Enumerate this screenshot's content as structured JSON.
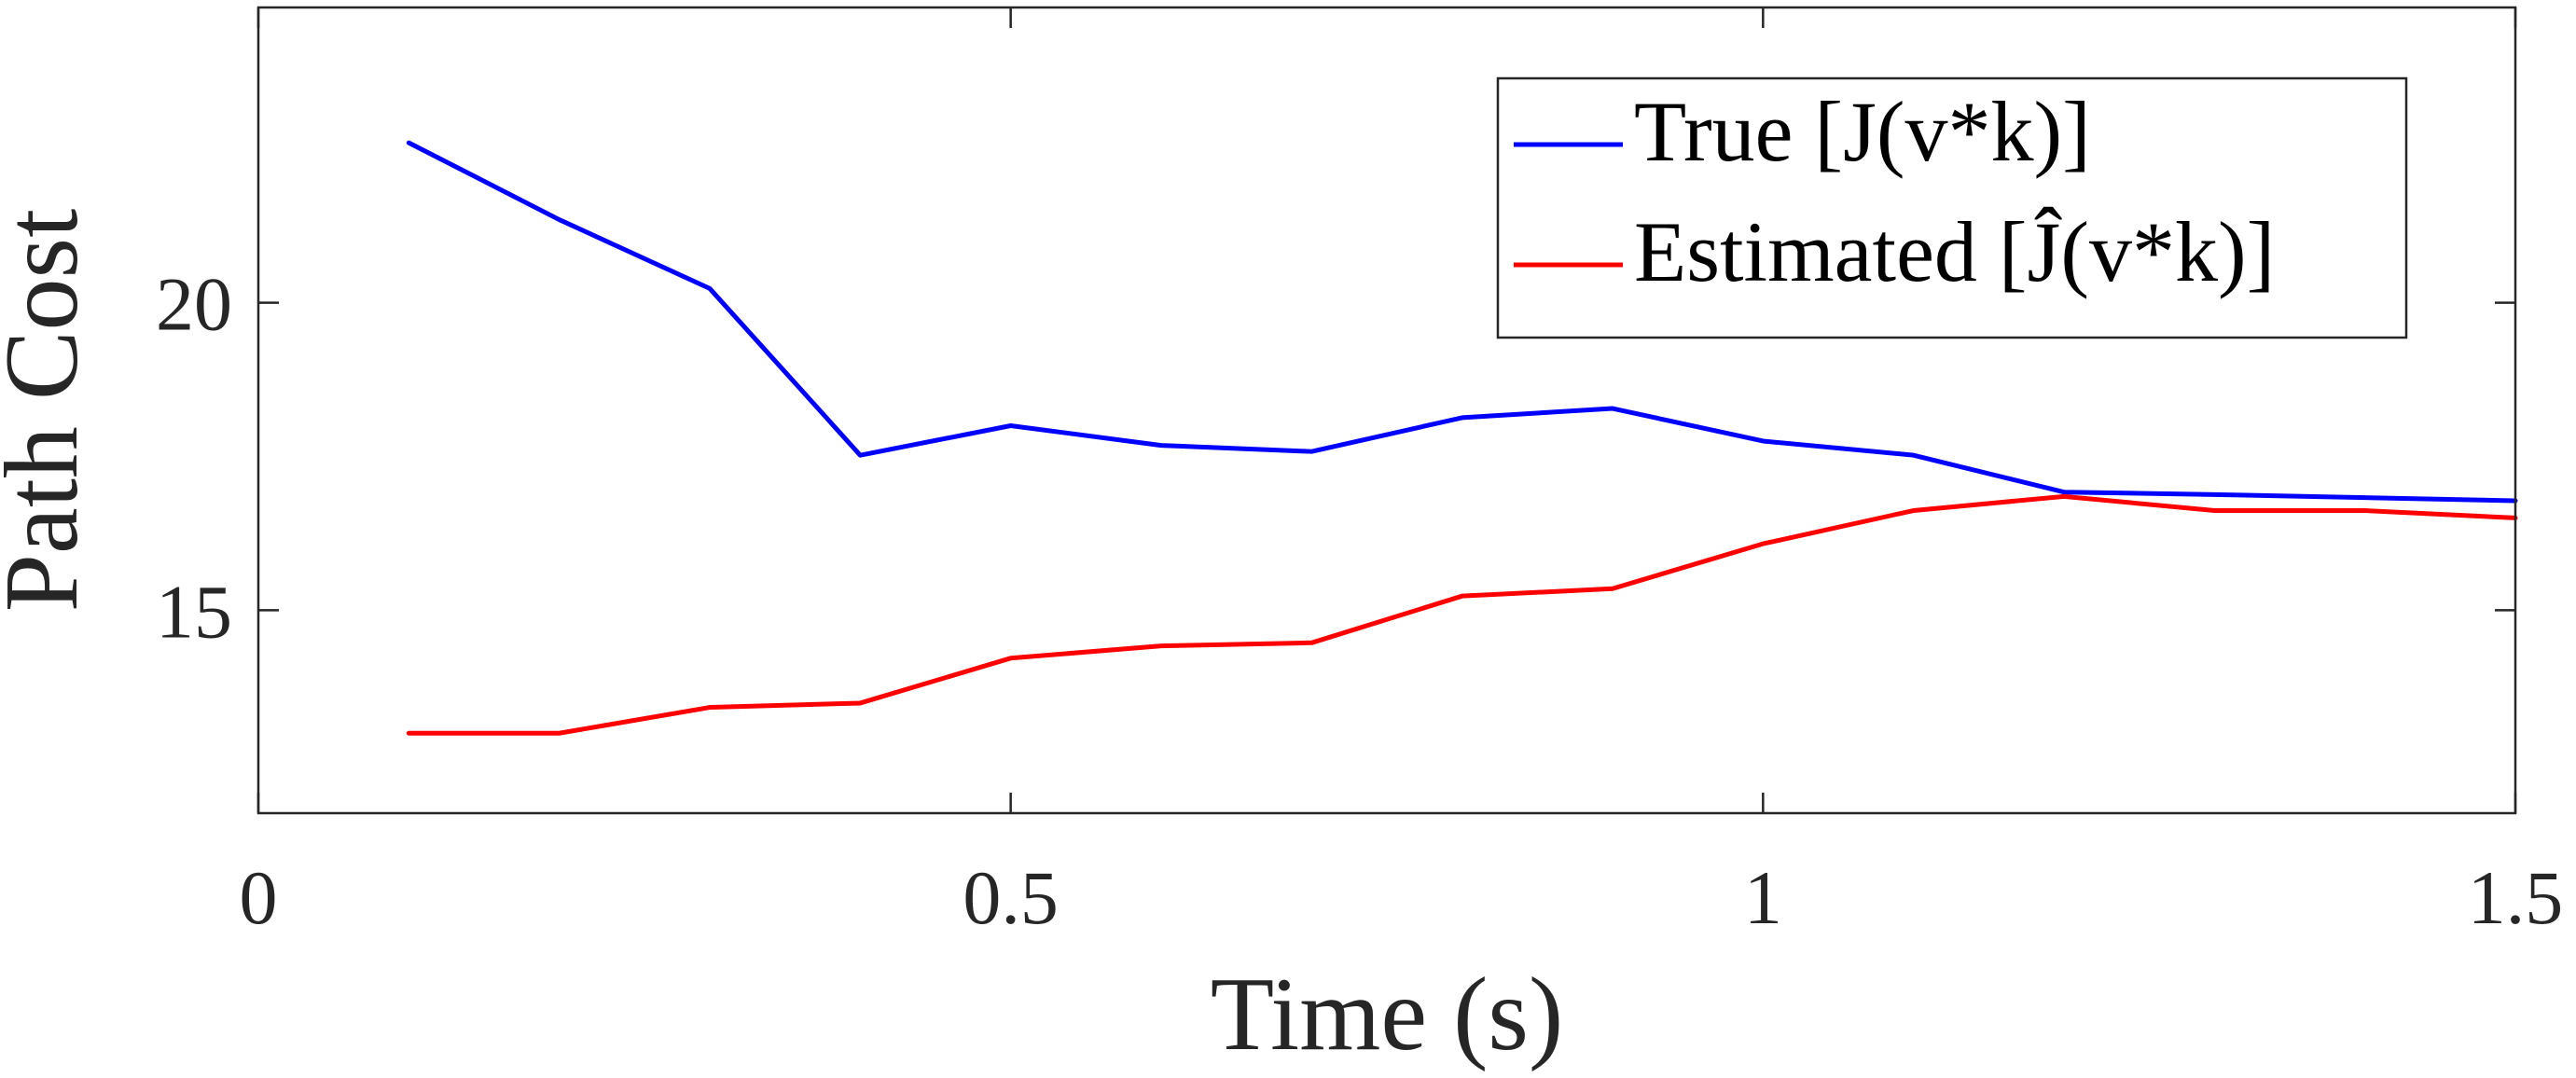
{
  "chart_data": {
    "type": "line",
    "title": "",
    "xlabel": "Time (s)",
    "ylabel": "Path Cost",
    "xlim": [
      0,
      1.5
    ],
    "ylim": [
      11.7,
      24.8
    ],
    "xticks": [
      0,
      0.5,
      1,
      1.5
    ],
    "xtick_labels": [
      "0",
      "0.5",
      "1",
      "1.5"
    ],
    "yticks": [
      15,
      20
    ],
    "ytick_labels": [
      "15",
      "20"
    ],
    "grid": false,
    "legend_position": "top-right",
    "x": [
      0.1,
      0.2,
      0.3,
      0.4,
      0.5,
      0.6,
      0.7,
      0.8,
      0.9,
      1.0,
      1.1,
      1.2,
      1.3,
      1.4,
      1.5
    ],
    "series": [
      {
        "name": "True [J(v*k)]",
        "color": "#0000ff",
        "values": [
          22.6,
          21.35,
          20.23,
          17.52,
          18.0,
          17.68,
          17.58,
          18.13,
          18.28,
          17.75,
          17.52,
          16.92,
          16.88,
          16.83,
          16.78
        ]
      },
      {
        "name": "Estimated [Ĵ(v*k)]",
        "color": "#ff0000",
        "values": [
          13.0,
          13.0,
          13.42,
          13.49,
          14.22,
          14.42,
          14.47,
          15.23,
          15.35,
          16.08,
          16.62,
          16.85,
          16.62,
          16.62,
          16.5
        ]
      }
    ]
  }
}
